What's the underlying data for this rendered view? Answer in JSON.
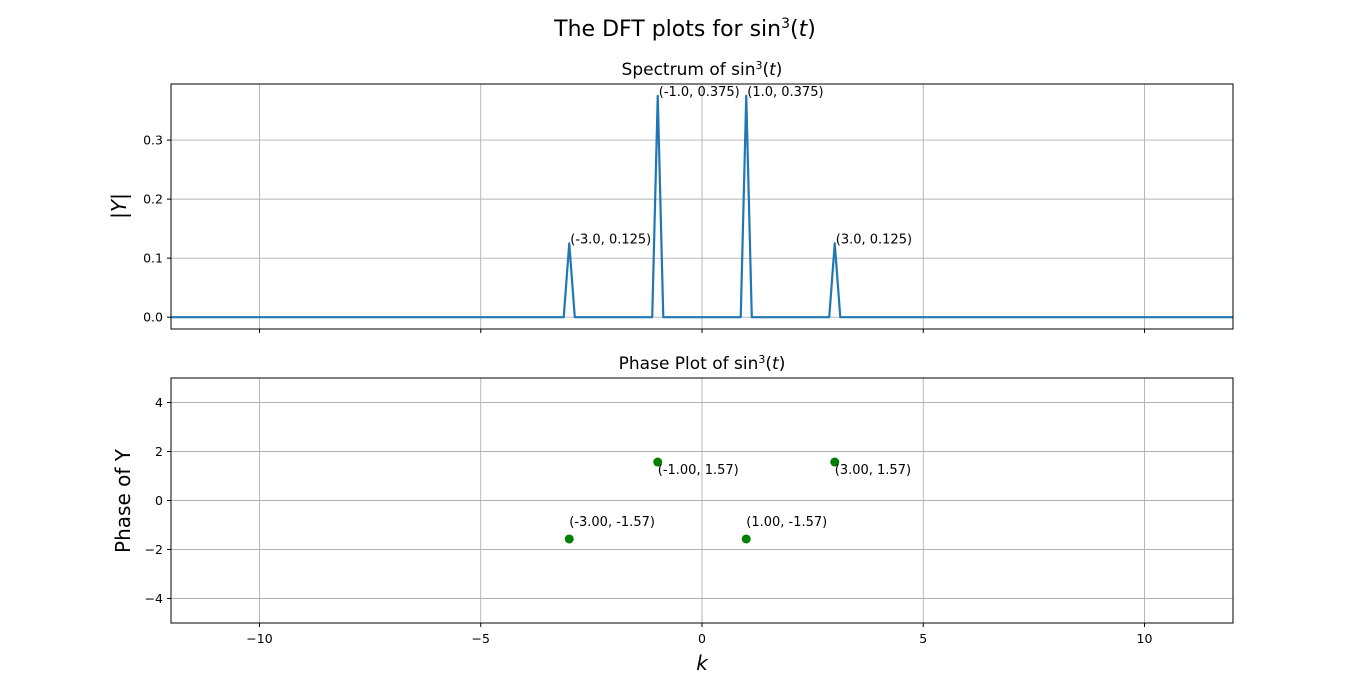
{
  "figure": {
    "suptitle": {
      "text": "The DFT plots for sin",
      "sup": "3",
      "var": "t"
    }
  },
  "chart_data": [
    {
      "type": "line",
      "title": {
        "text": "Spectrum of sin",
        "sup": "3",
        "var": "t"
      },
      "xlabel": "",
      "ylabel": "|Y|",
      "xlim": [
        -12,
        12
      ],
      "ylim": [
        -0.02,
        0.395
      ],
      "xticks": [
        -10,
        -5,
        0,
        5,
        10
      ],
      "yticks": [
        0.0,
        0.1,
        0.2,
        0.3
      ],
      "ytick_labels": [
        "0.0",
        "0.1",
        "0.2",
        "0.3"
      ],
      "show_xtick_labels": false,
      "grid": true,
      "line_color": "#1f77b4",
      "x": [
        -12,
        -3.125,
        -3.0,
        -2.875,
        -1.125,
        -1.0,
        -0.875,
        0.875,
        1.0,
        1.125,
        2.875,
        3.0,
        3.125,
        12
      ],
      "y": [
        0,
        0,
        0.125,
        0,
        0,
        0.375,
        0,
        0,
        0.375,
        0,
        0,
        0.125,
        0,
        0
      ],
      "annotations": [
        {
          "x": -3.0,
          "y": 0.125,
          "text": "(-3.0, 0.125)"
        },
        {
          "x": -1.0,
          "y": 0.375,
          "text": "(-1.0, 0.375)"
        },
        {
          "x": 1.0,
          "y": 0.375,
          "text": "(1.0, 0.375)"
        },
        {
          "x": 3.0,
          "y": 0.125,
          "text": "(3.0, 0.125)"
        }
      ]
    },
    {
      "type": "scatter",
      "title": {
        "text": "Phase Plot of sin",
        "sup": "3",
        "var": "t"
      },
      "xlabel": "k",
      "ylabel": "Phase of Y",
      "xlim": [
        -12,
        12
      ],
      "ylim": [
        -5,
        5
      ],
      "xticks": [
        -10,
        -5,
        0,
        5,
        10
      ],
      "xtick_labels": [
        "−10",
        "−5",
        "0",
        "5",
        "10"
      ],
      "yticks": [
        -4,
        -2,
        0,
        2,
        4
      ],
      "ytick_labels": [
        "−4",
        "−2",
        "0",
        "2",
        "4"
      ],
      "show_xtick_labels": true,
      "grid": true,
      "point_color": "#008000",
      "x": [
        -3.0,
        -1.0,
        1.0,
        3.0
      ],
      "y": [
        -1.57,
        1.57,
        -1.57,
        1.57
      ],
      "annotations": [
        {
          "x": -3.0,
          "y": -1.57,
          "text": "(-3.00, -1.57)",
          "pos": "above"
        },
        {
          "x": -1.0,
          "y": 1.57,
          "text": "(-1.00, 1.57)",
          "pos": "below"
        },
        {
          "x": 1.0,
          "y": -1.57,
          "text": "(1.00, -1.57)",
          "pos": "above"
        },
        {
          "x": 3.0,
          "y": 1.57,
          "text": "(3.00, 1.57)",
          "pos": "below"
        }
      ]
    }
  ]
}
